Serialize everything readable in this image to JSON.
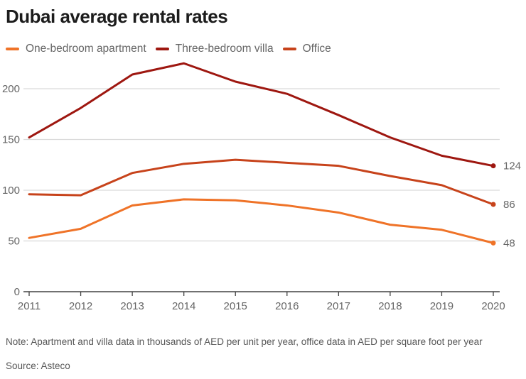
{
  "header": {
    "title": "Dubai average rental rates"
  },
  "legend": {
    "items": [
      {
        "label": "One-bedroom apartment",
        "color": "#ef7328"
      },
      {
        "label": "Three-bedroom villa",
        "color": "#9e1710"
      },
      {
        "label": "Office",
        "color": "#c7431b"
      }
    ]
  },
  "chart_data": {
    "type": "line",
    "title": "Dubai average rental rates",
    "x": [
      2011,
      2012,
      2013,
      2014,
      2015,
      2016,
      2017,
      2018,
      2019,
      2020
    ],
    "series": [
      {
        "name": "Three-bedroom villa",
        "color": "#9e1710",
        "values": [
          152,
          181,
          214,
          225,
          207,
          195,
          174,
          152,
          134,
          124
        ],
        "end_label": "124"
      },
      {
        "name": "Office",
        "color": "#c7431b",
        "values": [
          96,
          95,
          117,
          126,
          130,
          127,
          124,
          114,
          105,
          86
        ],
        "end_label": "86"
      },
      {
        "name": "One-bedroom apartment",
        "color": "#ef7328",
        "values": [
          53,
          62,
          85,
          91,
          90,
          85,
          78,
          66,
          61,
          48
        ],
        "end_label": "48"
      }
    ],
    "yticks": [
      0,
      50,
      100,
      150,
      200
    ],
    "ylim": [
      0,
      230
    ],
    "grid": "horizontal",
    "legend_position": "top"
  },
  "footer": {
    "note": "Note: Apartment and villa data in thousands of AED per unit per year, office data in AED per square foot per year",
    "source": "Source: Asteco"
  },
  "colors": {
    "gridline": "#d9d9d9",
    "axis": "#424242",
    "tick_text": "#666666"
  }
}
